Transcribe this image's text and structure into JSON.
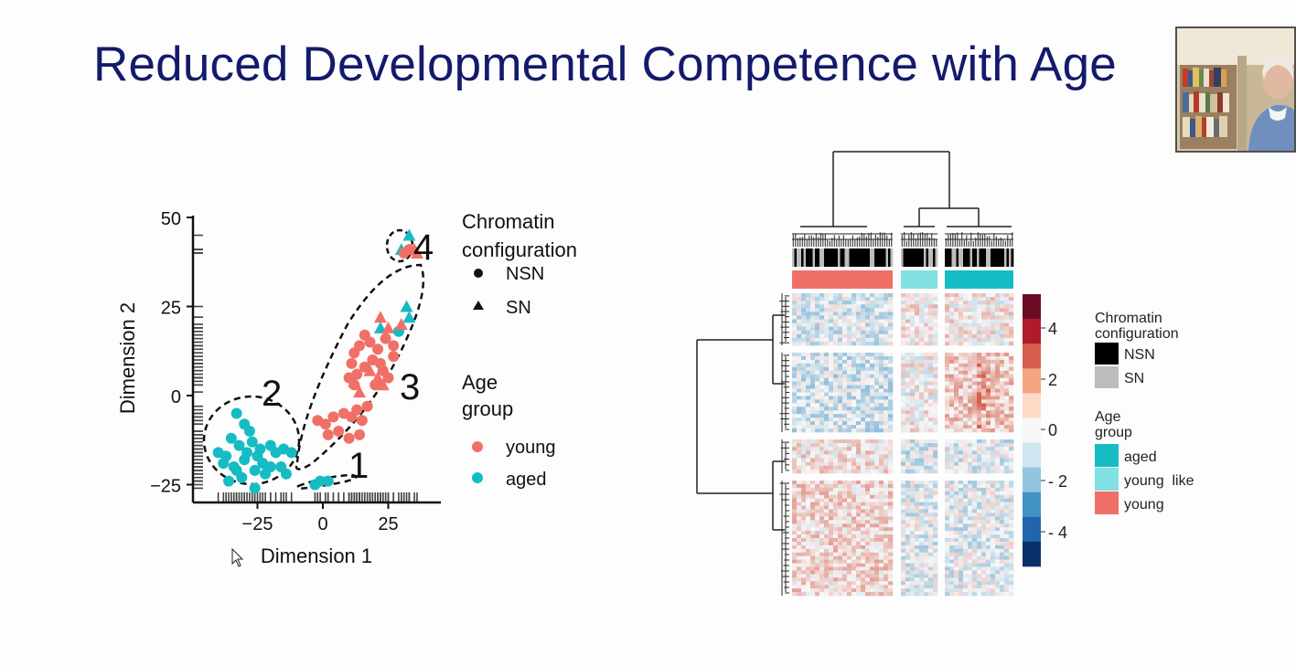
{
  "slide": {
    "title": "Reduced Developmental Competence with Age"
  },
  "scatter": {
    "xlabel": "Dimension 1",
    "ylabel": "Dimension 2",
    "x_ticks": [
      "−25",
      "0",
      "25"
    ],
    "y_ticks": [
      "50",
      "25",
      "0",
      "−25"
    ],
    "cluster_labels": [
      "1",
      "2",
      "3",
      "4"
    ],
    "legend_shape_title_1": "Chromatin",
    "legend_shape_title_2": "configuration",
    "legend_shape_items": [
      "NSN",
      "SN"
    ],
    "legend_color_title_1": "Age",
    "legend_color_title_2": "group",
    "legend_color_items": [
      "young",
      "aged"
    ]
  },
  "heatmap": {
    "scale_ticks": [
      "4",
      "2",
      "0",
      "- 2",
      "- 4"
    ],
    "legend_chromatin_title_1": "Chromatin",
    "legend_chromatin_title_2": "configuration",
    "legend_chromatin_items": [
      "NSN",
      "SN"
    ],
    "legend_age_title_1": "Age",
    "legend_age_title_2": "group",
    "legend_age_items": [
      "aged",
      "young  like",
      "young"
    ]
  },
  "colors": {
    "young": "#f07068",
    "aged": "#15bcc4",
    "young_like": "#80e0e2",
    "title": "#141a6b",
    "nsn": "#000000",
    "sn": "#bdbdbd"
  },
  "chart_data": [
    {
      "type": "scatter",
      "xlabel": "Dimension 1",
      "ylabel": "Dimension 2",
      "xlim": [
        -45,
        45
      ],
      "ylim": [
        -30,
        52
      ],
      "series": [
        {
          "name": "aged",
          "shape": "NSN",
          "points": [
            [
              -33,
              -5
            ],
            [
              -30,
              -8
            ],
            [
              -35,
              -12
            ],
            [
              -28,
              -10
            ],
            [
              -32,
              -14
            ],
            [
              -27,
              -13
            ],
            [
              -25,
              -17
            ],
            [
              -37,
              -17
            ],
            [
              -34,
              -20
            ],
            [
              -30,
              -18
            ],
            [
              -23,
              -19
            ],
            [
              -20,
              -20
            ],
            [
              -24,
              -15
            ],
            [
              -18,
              -16
            ],
            [
              -15,
              -15
            ],
            [
              -12,
              -16
            ],
            [
              -38,
              -19
            ],
            [
              -36,
              -24
            ],
            [
              -31,
              -23
            ],
            [
              -26,
              -21
            ],
            [
              -22,
              -22
            ],
            [
              -16,
              -20
            ],
            [
              -14,
              -22
            ],
            [
              -29,
              -16
            ],
            [
              -33,
              -21
            ],
            [
              -20,
              -14
            ],
            [
              -40,
              -16
            ],
            [
              -26,
              -26
            ],
            [
              -1,
              -24
            ],
            [
              2,
              -24
            ],
            [
              -3,
              -25
            ],
            [
              29,
              18
            ]
          ]
        },
        {
          "name": "aged",
          "shape": "SN",
          "points": [
            [
              22,
              19
            ],
            [
              33,
              22
            ],
            [
              32,
              25
            ],
            [
              33,
              45
            ],
            [
              30,
              41
            ]
          ]
        },
        {
          "name": "young",
          "shape": "NSN",
          "points": [
            [
              -2,
              -7
            ],
            [
              1,
              -8
            ],
            [
              4,
              -6
            ],
            [
              2,
              -11
            ],
            [
              6,
              -10
            ],
            [
              8,
              -5
            ],
            [
              11,
              -6
            ],
            [
              13,
              -4
            ],
            [
              15,
              -7
            ],
            [
              17,
              -3
            ],
            [
              14,
              -11
            ],
            [
              10,
              -12
            ],
            [
              12,
              3
            ],
            [
              10,
              5
            ],
            [
              13,
              6
            ],
            [
              16,
              8
            ],
            [
              11,
              9
            ],
            [
              12,
              12
            ],
            [
              14,
              14
            ],
            [
              18,
              15
            ],
            [
              16,
              17
            ],
            [
              19,
              10
            ],
            [
              21,
              13
            ],
            [
              23,
              7
            ],
            [
              25,
              5
            ],
            [
              22,
              9
            ],
            [
              24,
              16
            ],
            [
              27,
              14
            ],
            [
              20,
              3
            ],
            [
              27,
              11
            ],
            [
              31,
              40
            ],
            [
              33,
              41
            ]
          ]
        },
        {
          "name": "young",
          "shape": "SN",
          "points": [
            [
              12,
              4
            ],
            [
              14,
              1
            ],
            [
              18,
              7
            ],
            [
              21,
              5
            ],
            [
              23,
              3
            ],
            [
              22,
              22
            ],
            [
              25,
              19
            ],
            [
              30,
              20
            ],
            [
              35,
              41
            ],
            [
              36,
              40
            ]
          ]
        }
      ]
    },
    {
      "type": "heatmap",
      "color_scale": {
        "ticks": [
          4,
          2,
          0,
          -2,
          -4
        ],
        "colors": [
          "#6b0a24",
          "#b11a2c",
          "#d6604d",
          "#f4a582",
          "#fddbc7",
          "#f7f7f7",
          "#d1e5f0",
          "#92c5de",
          "#4393c3",
          "#2166ac",
          "#0b2f6b"
        ]
      },
      "column_groups": [
        "young",
        "young  like",
        "aged"
      ],
      "row_blocks": 4
    }
  ]
}
